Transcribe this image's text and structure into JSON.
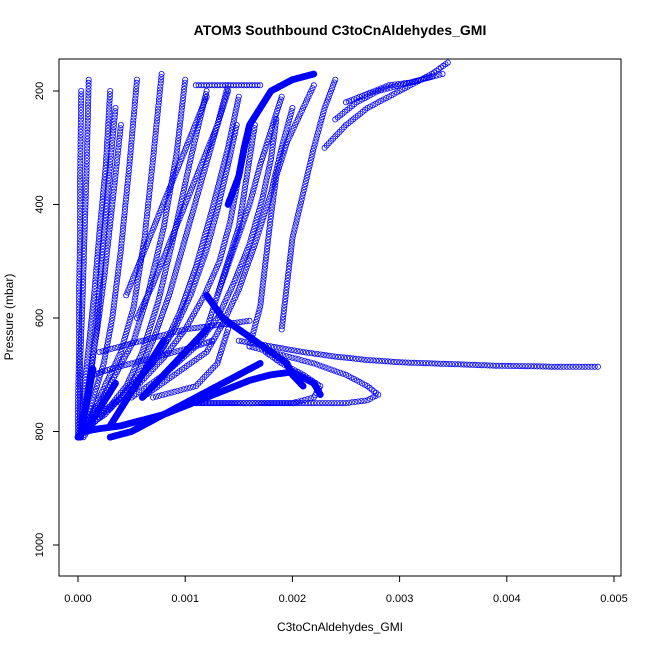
{
  "chart_data": {
    "type": "scatter",
    "title": "ATOM3 Southbound C3toCnAldehydes_GMI",
    "xlabel": "C3toCnAldehydes_GMI",
    "ylabel": "Pressure (mbar)",
    "xlim": [
      -0.00015,
      0.005
    ],
    "ylim": [
      1050,
      150
    ],
    "y_inverted": true,
    "grid": false,
    "legend": "none",
    "marker": "open-circle",
    "color": "#0000ff",
    "x_ticks": [
      {
        "value": 0.0,
        "label": "0.000"
      },
      {
        "value": 0.001,
        "label": "0.001"
      },
      {
        "value": 0.002,
        "label": "0.002"
      },
      {
        "value": 0.003,
        "label": "0.003"
      },
      {
        "value": 0.004,
        "label": "0.004"
      },
      {
        "value": 0.005,
        "label": "0.005"
      }
    ],
    "y_ticks": [
      {
        "value": 200,
        "label": "200"
      },
      {
        "value": 400,
        "label": "400"
      },
      {
        "value": 600,
        "label": "600"
      },
      {
        "value": 800,
        "label": "800"
      },
      {
        "value": 1000,
        "label": "1000"
      }
    ],
    "series": [
      {
        "x": [
          3e-05,
          5e-05,
          8e-05,
          0.00012,
          0.00018,
          0.00025,
          0.00032,
          0.0004
        ],
        "y": [
          810,
          780,
          740,
          690,
          620,
          520,
          400,
          260
        ]
      },
      {
        "x": [
          2e-05,
          4e-05,
          6e-05,
          0.0001,
          0.00015,
          0.0002,
          0.00026,
          0.0003
        ],
        "y": [
          810,
          770,
          720,
          650,
          560,
          450,
          330,
          200
        ]
      },
      {
        "x": [
          3e-05,
          7e-05,
          0.00012,
          0.00018,
          0.00022,
          0.00028,
          0.00035
        ],
        "y": [
          805,
          760,
          700,
          610,
          500,
          370,
          230
        ]
      },
      {
        "x": [
          5e-05,
          0.0001,
          0.00016,
          0.00024,
          0.00032,
          0.0004,
          0.00048,
          0.00055
        ],
        "y": [
          800,
          770,
          730,
          680,
          600,
          480,
          330,
          180
        ]
      },
      {
        "x": [
          8e-05,
          0.00015,
          0.00025,
          0.0004,
          0.00052,
          0.00062,
          0.0007,
          0.00078
        ],
        "y": [
          790,
          760,
          720,
          660,
          580,
          460,
          320,
          170
        ]
      },
      {
        "x": [
          0.0001,
          0.0002,
          0.00035,
          0.00052,
          0.00065,
          0.0008,
          0.00092,
          0.001
        ],
        "y": [
          780,
          750,
          700,
          640,
          560,
          440,
          310,
          180
        ]
      },
      {
        "x": [
          5e-05,
          0.00012,
          0.00028,
          0.00045,
          0.0006,
          0.00075,
          0.0009,
          0.00105,
          0.0012
        ],
        "y": [
          810,
          790,
          760,
          720,
          660,
          570,
          450,
          320,
          200
        ]
      },
      {
        "x": [
          0.0001,
          0.00025,
          0.0004,
          0.00055,
          0.0007,
          0.00085,
          0.001,
          0.00115,
          0.0013,
          0.0014
        ],
        "y": [
          790,
          770,
          740,
          700,
          640,
          560,
          460,
          360,
          260,
          190
        ]
      },
      {
        "x": [
          0.0002,
          0.0004,
          0.0006,
          0.0008,
          0.00095,
          0.0011,
          0.00125,
          0.0014,
          0.0015
        ],
        "y": [
          770,
          740,
          700,
          650,
          590,
          510,
          410,
          300,
          210
        ]
      },
      {
        "x": [
          0.0003,
          0.0005,
          0.0007,
          0.0009,
          0.00105,
          0.0012,
          0.0013,
          0.0014,
          0.00148
        ],
        "y": [
          760,
          720,
          680,
          620,
          560,
          480,
          410,
          330,
          260
        ]
      },
      {
        "x": [
          0.0004,
          0.0006,
          0.0008,
          0.001,
          0.00118,
          0.00132,
          0.00142,
          0.0015,
          0.00158
        ],
        "y": [
          750,
          710,
          670,
          620,
          560,
          500,
          430,
          350,
          280
        ]
      },
      {
        "x": [
          0.0005,
          0.0008,
          0.0011,
          0.0013,
          0.00145,
          0.0016,
          0.00172,
          0.0018,
          0.00185
        ],
        "y": [
          740,
          700,
          650,
          600,
          540,
          470,
          390,
          320,
          250
        ]
      },
      {
        "x": [
          0.0006,
          0.0009,
          0.0012,
          0.00135,
          0.0015,
          0.00165,
          0.0018,
          0.0019,
          0.002
        ],
        "y": [
          740,
          700,
          660,
          610,
          550,
          470,
          380,
          300,
          230
        ]
      },
      {
        "x": [
          0.00102,
          0.0012,
          0.0014,
          0.0016,
          0.0018,
          0.002,
          0.0022,
          0.00226,
          0.0021,
          0.0019,
          0.00175
        ],
        "y": [
          750,
          750,
          750,
          750,
          750,
          750,
          740,
          720,
          700,
          680,
          660
        ]
      },
      {
        "x": [
          0.00102,
          0.0013,
          0.0016,
          0.0019,
          0.0022,
          0.0025,
          0.0027,
          0.0028,
          0.0027,
          0.0025,
          0.0022,
          0.002,
          0.0018,
          0.0016
        ],
        "y": [
          750,
          750,
          750,
          750,
          750,
          750,
          745,
          735,
          720,
          700,
          680,
          670,
          660,
          650
        ]
      },
      {
        "x": [
          0.0016,
          0.0017,
          0.00175,
          0.0018,
          0.00185,
          0.00195,
          0.0021,
          0.0022
        ],
        "y": [
          650,
          580,
          500,
          420,
          350,
          290,
          230,
          190
        ]
      },
      {
        "x": [
          0.0019,
          0.00195,
          0.002,
          0.0021,
          0.0022,
          0.0023,
          0.0024
        ],
        "y": [
          620,
          540,
          460,
          380,
          300,
          230,
          180
        ]
      },
      {
        "x": [
          0.0023,
          0.0025,
          0.0027,
          0.0029,
          0.0031,
          0.0033,
          0.00345
        ],
        "y": [
          300,
          260,
          230,
          210,
          190,
          170,
          150
        ]
      },
      {
        "x": [
          0.0024,
          0.0026,
          0.0028,
          0.003,
          0.0032,
          0.0034
        ],
        "y": [
          250,
          220,
          200,
          190,
          180,
          170
        ]
      },
      {
        "x": [
          0.0025,
          0.0027,
          0.0029,
          0.0031,
          0.0033
        ],
        "y": [
          220,
          205,
          190,
          185,
          175
        ]
      },
      {
        "x": [
          0.0015,
          0.0018,
          0.0021,
          0.0024,
          0.0027,
          0.003,
          0.0033,
          0.0036,
          0.0039,
          0.0042,
          0.0045,
          0.00485
        ],
        "y": [
          640,
          650,
          660,
          668,
          674,
          678,
          680,
          682,
          684,
          685,
          686,
          686
        ]
      },
      {
        "x": [
          0.0011,
          0.0012,
          0.0013,
          0.0014,
          0.0015,
          0.0016,
          0.0017
        ],
        "y": [
          190,
          190,
          190,
          190,
          190,
          190,
          190
        ]
      },
      {
        "x": [
          0.0002,
          0.0004,
          0.0006,
          0.0008,
          0.001,
          0.0012,
          0.0014,
          0.0016
        ],
        "y": [
          660,
          650,
          640,
          630,
          620,
          615,
          610,
          605
        ]
      },
      {
        "x": [
          0.00015,
          0.0003,
          0.0005,
          0.0007,
          0.0009,
          0.0011,
          0.00125
        ],
        "y": [
          700,
          690,
          680,
          670,
          660,
          650,
          640
        ]
      },
      {
        "x": [
          0.0007,
          0.0009,
          0.0011,
          0.0012,
          0.0013,
          0.00135,
          0.0014
        ],
        "y": [
          740,
          730,
          720,
          700,
          680,
          650,
          620
        ]
      },
      {
        "x": [
          0.0012,
          0.0013,
          0.0014,
          0.0015,
          0.00155,
          0.0016,
          0.00165
        ],
        "y": [
          620,
          560,
          500,
          440,
          380,
          320,
          260
        ]
      },
      {
        "x": [
          0.0013,
          0.00145,
          0.0016,
          0.0017,
          0.0018,
          0.0019
        ],
        "y": [
          560,
          480,
          400,
          330,
          270,
          210
        ]
      },
      {
        "x": [
          0.00055,
          0.0007,
          0.00085,
          0.001,
          0.00115,
          0.0013,
          0.0014
        ],
        "y": [
          600,
          540,
          470,
          400,
          330,
          260,
          200
        ]
      },
      {
        "x": [
          0.00045,
          0.0006,
          0.00075,
          0.0009,
          0.00105,
          0.0012
        ],
        "y": [
          560,
          490,
          420,
          350,
          280,
          210
        ]
      },
      {
        "x": [
          0.0,
          0.0,
          1e-05,
          1e-05,
          2e-05,
          2e-05,
          3e-05
        ],
        "y": [
          810,
          750,
          650,
          550,
          450,
          350,
          200
        ]
      },
      {
        "x": [
          1e-05,
          2e-05,
          2e-05,
          4e-05,
          6e-05,
          8e-05,
          0.0001
        ],
        "y": [
          808,
          760,
          680,
          580,
          460,
          340,
          180
        ]
      }
    ],
    "bold_series": [
      {
        "x": [
          0.0,
          5e-05,
          0.0001,
          0.00015,
          0.0002,
          0.00025,
          0.0003,
          0.00035
        ],
        "y": [
          810,
          800,
          790,
          775,
          760,
          745,
          730,
          715
        ]
      },
      {
        "x": [
          5e-05,
          0.0002,
          0.0004,
          0.0006,
          0.0008,
          0.001,
          0.0012,
          0.0014,
          0.0016,
          0.0018,
          0.002,
          0.0022,
          0.00226
        ],
        "y": [
          800,
          795,
          790,
          780,
          770,
          755,
          740,
          725,
          710,
          700,
          695,
          715,
          735
        ]
      },
      {
        "x": [
          0.0003,
          0.0005,
          0.0007,
          0.0009,
          0.0011,
          0.0013,
          0.0015,
          0.0017
        ],
        "y": [
          810,
          800,
          780,
          760,
          740,
          720,
          700,
          680
        ]
      },
      {
        "x": [
          0.0006,
          0.0007,
          0.0008,
          0.0009,
          0.001,
          0.0011,
          0.0012
        ],
        "y": [
          740,
          720,
          700,
          680,
          660,
          640,
          620
        ]
      },
      {
        "x": [
          0.0012,
          0.00135,
          0.0015,
          0.00165,
          0.0018,
          0.00195,
          0.002,
          0.0021
        ],
        "y": [
          560,
          600,
          620,
          640,
          660,
          680,
          700,
          720
        ]
      },
      {
        "x": [
          0.0014,
          0.0015,
          0.00155,
          0.0016,
          0.0017,
          0.0018,
          0.002,
          0.0022
        ],
        "y": [
          400,
          350,
          300,
          260,
          230,
          200,
          180,
          170
        ]
      },
      {
        "x": [
          0.0003,
          0.0004,
          0.0005,
          0.0006,
          0.0007,
          0.0008
        ],
        "y": [
          790,
          760,
          730,
          700,
          670,
          640
        ]
      },
      {
        "x": [
          2e-05,
          4e-05,
          6e-05,
          8e-05,
          0.0001,
          0.00012,
          0.00014
        ],
        "y": [
          810,
          790,
          770,
          750,
          730,
          710,
          690
        ]
      }
    ]
  }
}
